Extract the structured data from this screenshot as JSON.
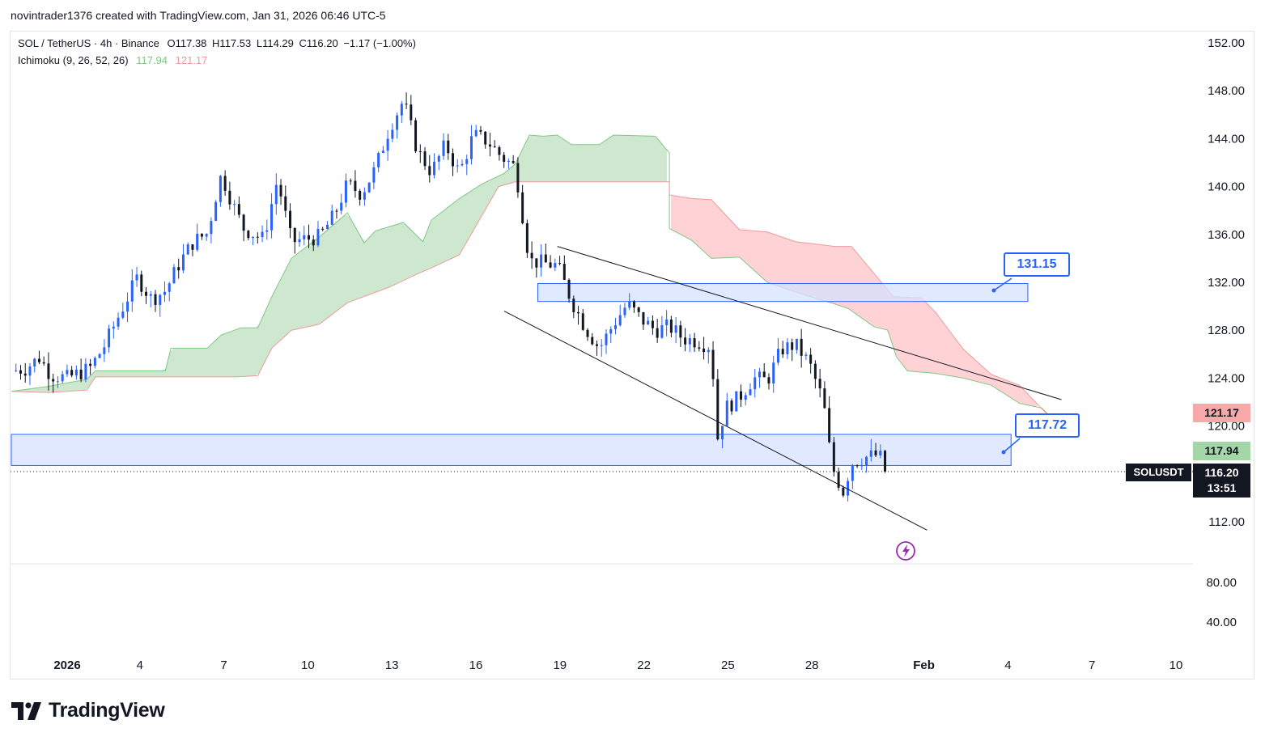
{
  "header": {
    "attribution": "novintrader1376 created with TradingView.com, Jan 31, 2026 06:46 UTC-5"
  },
  "legend": {
    "symbol": "SOL / TetherUS · 4h · Binance",
    "open": "O117.38",
    "high": "H117.53",
    "low": "L114.29",
    "close": "C116.20",
    "change": "−1.17 (−1.00%)",
    "indicator": "Ichimoku (9, 26, 52, 26)",
    "lead1_value": "117.94",
    "lead2_value": "121.17"
  },
  "price_tags": {
    "lead2": "121.17",
    "lead1": "117.94",
    "symbol": "SOLUSDT",
    "last_price": "116.20",
    "countdown": "13:51"
  },
  "callouts": {
    "upper_zone": "131.15",
    "lower_zone": "117.72"
  },
  "colors": {
    "up": "#2962ff",
    "down": "#131722",
    "cloud_bull": "#c8e6c9",
    "cloud_bear": "#ffcdd2",
    "zone_fill": "#d6e2ff",
    "zone_border": "#2962ff",
    "lead2_tag": "#f7a9a9",
    "lead1_tag": "#a5d6a7"
  },
  "branding": {
    "name": "TradingView"
  },
  "chart_data": {
    "type": "candlestick",
    "title": "SOL / TetherUS · 4h · Binance",
    "ylim": [
      110,
      152
    ],
    "y_ticks": [
      "152.00",
      "148.00",
      "144.00",
      "140.00",
      "136.00",
      "132.00",
      "128.00",
      "124.00",
      "120.00",
      "112.00"
    ],
    "lower_pane_ticks": [
      "80.00",
      "40.00"
    ],
    "x_ticks": [
      {
        "label": "2026",
        "day": 1
      },
      {
        "label": "4",
        "day": 4
      },
      {
        "label": "7",
        "day": 7
      },
      {
        "label": "10",
        "day": 10
      },
      {
        "label": "13",
        "day": 13
      },
      {
        "label": "16",
        "day": 16
      },
      {
        "label": "19",
        "day": 19
      },
      {
        "label": "22",
        "day": 22
      },
      {
        "label": "25",
        "day": 25
      },
      {
        "label": "28",
        "day": 28
      },
      {
        "label": "Feb",
        "day": 32
      },
      {
        "label": "4",
        "day": 35
      },
      {
        "label": "7",
        "day": 38
      },
      {
        "label": "10",
        "day": 41
      }
    ],
    "price_path": [
      [
        0.0,
        124.6
      ],
      [
        0.5,
        124.8
      ],
      [
        1.0,
        125.7
      ],
      [
        1.4,
        124.3
      ],
      [
        2.0,
        124.0
      ],
      [
        2.8,
        124.8
      ],
      [
        3.3,
        126.6
      ],
      [
        4.0,
        130.0
      ],
      [
        4.5,
        132.4
      ],
      [
        5.0,
        130.6
      ],
      [
        5.5,
        131.3
      ],
      [
        6.0,
        133.6
      ],
      [
        6.5,
        135.4
      ],
      [
        7.0,
        136.1
      ],
      [
        7.3,
        139.2
      ],
      [
        7.5,
        141.0
      ],
      [
        8.0,
        138.0
      ],
      [
        8.3,
        136.5
      ],
      [
        9.0,
        135.6
      ],
      [
        9.5,
        140.6
      ],
      [
        10.0,
        135.4
      ],
      [
        11.0,
        135.8
      ],
      [
        11.5,
        137.5
      ],
      [
        12.0,
        140.2
      ],
      [
        12.5,
        139.4
      ],
      [
        13.0,
        141.5
      ],
      [
        13.5,
        144.9
      ],
      [
        14.0,
        147.2
      ],
      [
        14.5,
        143.0
      ],
      [
        15.0,
        141.2
      ],
      [
        15.5,
        143.5
      ],
      [
        16.0,
        141.1
      ],
      [
        16.5,
        144.3
      ],
      [
        17.0,
        143.8
      ],
      [
        17.5,
        142.5
      ],
      [
        18.0,
        141.6
      ],
      [
        18.2,
        138.5
      ],
      [
        18.5,
        133.8
      ],
      [
        19.0,
        133.6
      ],
      [
        19.5,
        133.4
      ],
      [
        20.0,
        130.5
      ],
      [
        20.5,
        128.2
      ],
      [
        21.0,
        126.5
      ],
      [
        21.5,
        128.5
      ],
      [
        22.0,
        130.2
      ],
      [
        22.5,
        128.9
      ],
      [
        23.0,
        128.0
      ],
      [
        23.5,
        128.3
      ],
      [
        24.0,
        127.3
      ],
      [
        24.5,
        127.1
      ],
      [
        25.0,
        126.6
      ],
      [
        25.2,
        118.8
      ],
      [
        25.5,
        121.5
      ],
      [
        26.0,
        122.4
      ],
      [
        26.5,
        124.0
      ],
      [
        27.0,
        123.8
      ],
      [
        27.5,
        126.4
      ],
      [
        28.0,
        126.8
      ],
      [
        28.5,
        125.2
      ],
      [
        29.0,
        122.0
      ],
      [
        29.3,
        116.6
      ],
      [
        29.7,
        114.5
      ],
      [
        30.0,
        116.9
      ],
      [
        30.5,
        117.4
      ],
      [
        31.0,
        117.6
      ],
      [
        31.2,
        116.2
      ]
    ],
    "candle_count": 188,
    "ichimoku": {
      "params": [
        9,
        26,
        52,
        26
      ],
      "cloud_path_days": [
        0,
        37.8
      ],
      "senkou_a": [
        [
          0,
          122.9
        ],
        [
          1.3,
          123.3
        ],
        [
          2.7,
          123.9
        ],
        [
          3.0,
          124.6
        ],
        [
          4.0,
          124.6
        ],
        [
          5.5,
          124.6
        ],
        [
          5.7,
          126.5
        ],
        [
          7.0,
          126.5
        ],
        [
          7.5,
          127.6
        ],
        [
          8.2,
          128.2
        ],
        [
          8.8,
          128.2
        ],
        [
          9.3,
          130.8
        ],
        [
          10.0,
          134.0
        ],
        [
          11.0,
          135.8
        ],
        [
          12.0,
          137.8
        ],
        [
          12.6,
          135.3
        ],
        [
          13.0,
          136.3
        ],
        [
          14.0,
          137.0
        ],
        [
          14.7,
          135.4
        ],
        [
          15.0,
          137.2
        ],
        [
          16.0,
          139.0
        ],
        [
          16.8,
          140.2
        ],
        [
          17.6,
          141.1
        ],
        [
          18.0,
          141.9
        ],
        [
          18.5,
          144.3
        ],
        [
          19.0,
          144.2
        ],
        [
          19.5,
          144.3
        ],
        [
          20.0,
          143.5
        ],
        [
          21.0,
          143.5
        ],
        [
          21.5,
          144.3
        ],
        [
          23.0,
          144.2
        ],
        [
          23.5,
          142.8
        ],
        [
          23.5,
          136.5
        ],
        [
          24.3,
          135.5
        ],
        [
          25.0,
          134.0
        ],
        [
          26.0,
          134.1
        ],
        [
          27.0,
          132.0
        ],
        [
          28.0,
          131.2
        ],
        [
          28.8,
          130.6
        ],
        [
          29.4,
          130.2
        ],
        [
          29.9,
          129.8
        ],
        [
          30.8,
          128.3
        ],
        [
          31.3,
          128.0
        ],
        [
          31.6,
          125.8
        ],
        [
          32.0,
          124.6
        ],
        [
          33.0,
          124.4
        ],
        [
          34.0,
          124.0
        ],
        [
          35.0,
          123.4
        ],
        [
          36.0,
          121.9
        ],
        [
          36.8,
          121.5
        ],
        [
          37.8,
          119.1
        ]
      ],
      "senkou_b": [
        [
          0,
          122.9
        ],
        [
          1.3,
          122.8
        ],
        [
          2.7,
          123.0
        ],
        [
          3.0,
          124.1
        ],
        [
          5.5,
          124.1
        ],
        [
          5.7,
          124.1
        ],
        [
          7.0,
          124.1
        ],
        [
          8.0,
          124.1
        ],
        [
          8.8,
          124.2
        ],
        [
          9.3,
          126.5
        ],
        [
          10.0,
          128.0
        ],
        [
          11.0,
          128.5
        ],
        [
          12.0,
          130.3
        ],
        [
          13.5,
          131.6
        ],
        [
          14.5,
          132.7
        ],
        [
          15.0,
          133.2
        ],
        [
          16.0,
          134.3
        ],
        [
          17.4,
          140.0
        ],
        [
          18.0,
          140.4
        ],
        [
          20.0,
          140.4
        ],
        [
          21.0,
          140.4
        ],
        [
          22.0,
          140.4
        ],
        [
          23.5,
          140.4
        ],
        [
          23.5,
          139.3
        ],
        [
          24.3,
          139.0
        ],
        [
          25.0,
          138.9
        ],
        [
          26.0,
          136.4
        ],
        [
          27.0,
          136.2
        ],
        [
          28.0,
          135.4
        ],
        [
          29.4,
          135.0
        ],
        [
          30.0,
          135.0
        ],
        [
          31.5,
          130.8
        ],
        [
          32.5,
          130.7
        ],
        [
          33.0,
          129.5
        ],
        [
          34.0,
          126.4
        ],
        [
          35.0,
          124.3
        ],
        [
          36.0,
          123.4
        ],
        [
          36.9,
          121.2
        ],
        [
          37.8,
          119.1
        ]
      ]
    },
    "zones": [
      {
        "label": "131.15",
        "from_day": 18.8,
        "to_day": 36.3,
        "low": 130.4,
        "high": 131.9
      },
      {
        "label": "117.72",
        "from_day": 0,
        "to_day": 35.7,
        "low": 116.7,
        "high": 119.3
      }
    ],
    "trendlines": [
      {
        "from": [
          19.5,
          135.0
        ],
        "to": [
          37.5,
          122.2
        ],
        "label": "upper falling wedge line"
      },
      {
        "from": [
          17.6,
          129.6
        ],
        "to": [
          32.7,
          111.3
        ],
        "label": "lower falling wedge line"
      }
    ],
    "last_price": 116.2,
    "senkou_a_last": 117.94,
    "senkou_b_last": 121.17
  }
}
